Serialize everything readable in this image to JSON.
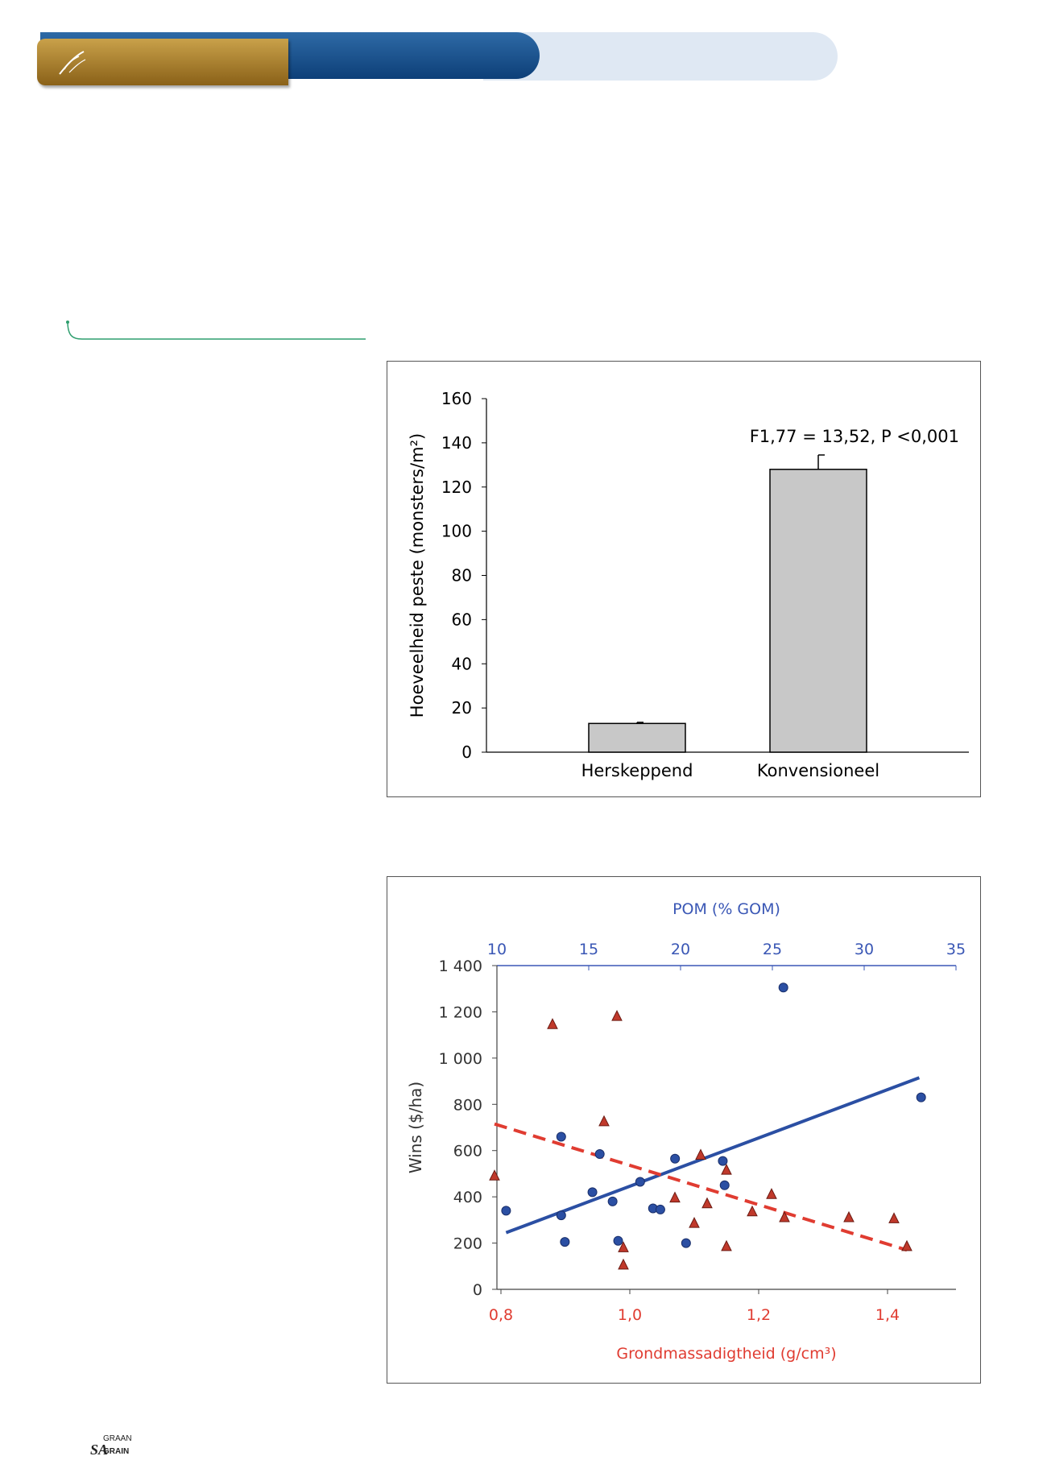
{
  "header": {
    "brand_colors": {
      "gold": "#b08a35",
      "blue": "#1a4f8c",
      "light": "#dfe8f3"
    },
    "logo_icon": "grain-leaf-icon"
  },
  "pull_quote": {
    "rule_color": "#2e9e6e"
  },
  "figures": [
    {
      "chart_data": {
        "type": "bar",
        "categories": [
          "Herskeppend",
          "Konvensioneel"
        ],
        "values": [
          13,
          128
        ],
        "errors": [
          0.5,
          6.5
        ],
        "ylabel": "Hoeveelheid peste (monsters/m²)",
        "ylim": [
          0,
          160
        ],
        "yticks": [
          "0",
          "20",
          "40",
          "60",
          "80",
          "100",
          "120",
          "140",
          "160"
        ],
        "annotation": "F1,77 = 13,52, P <0,001",
        "bar_color": "#c8c8c8",
        "grid": false
      }
    },
    {
      "chart_data": {
        "type": "scatter",
        "top_axis": {
          "label": "POM (% GOM)",
          "range": [
            10,
            35
          ],
          "ticks": [
            "10",
            "15",
            "20",
            "25",
            "30",
            "35"
          ],
          "color": "#3a57b5"
        },
        "bottom_axis": {
          "label": "Grondmassadigtheid (g/cm³)",
          "range": [
            0.79,
            1.5
          ],
          "ticks": [
            "0,8",
            "1,0",
            "1,2",
            "1,4"
          ],
          "tick_values": [
            0.8,
            1.0,
            1.2,
            1.4
          ],
          "color": "#e03c31"
        },
        "ylabel": "Wins ($/ha)",
        "ylim": [
          0,
          1400
        ],
        "yticks": [
          "0",
          "200",
          "400",
          "600",
          "800",
          "1 000",
          "1 200",
          "1 400"
        ],
        "series": [
          {
            "marker": "circle",
            "color": "#2b4fa3",
            "axis": "top",
            "points": [
              [
                10.5,
                340
              ],
              [
                13.5,
                660
              ],
              [
                13.5,
                320
              ],
              [
                13.7,
                205
              ],
              [
                15.2,
                420
              ],
              [
                15.6,
                585
              ],
              [
                16.3,
                380
              ],
              [
                16.6,
                210
              ],
              [
                17.8,
                465
              ],
              [
                18.5,
                350
              ],
              [
                18.9,
                345
              ],
              [
                19.7,
                565
              ],
              [
                20.3,
                200
              ],
              [
                22.3,
                555
              ],
              [
                22.4,
                450
              ],
              [
                25.6,
                1305
              ],
              [
                33.1,
                830
              ]
            ]
          },
          {
            "marker": "triangle",
            "color": "#c0392b",
            "axis": "bottom",
            "points": [
              [
                0.79,
                490
              ],
              [
                0.88,
                1145
              ],
              [
                0.96,
                725
              ],
              [
                0.98,
                1180
              ],
              [
                0.99,
                180
              ],
              [
                0.99,
                105
              ],
              [
                1.07,
                395
              ],
              [
                1.1,
                285
              ],
              [
                1.11,
                580
              ],
              [
                1.12,
                370
              ],
              [
                1.15,
                185
              ],
              [
                1.15,
                515
              ],
              [
                1.19,
                335
              ],
              [
                1.22,
                410
              ],
              [
                1.24,
                310
              ],
              [
                1.34,
                310
              ],
              [
                1.41,
                305
              ],
              [
                1.43,
                185
              ]
            ]
          }
        ],
        "trendlines": [
          {
            "axis": "top",
            "color": "#2b4fa3",
            "style": "solid",
            "from": [
              10.5,
              245
            ],
            "to": [
              33.0,
              915
            ]
          },
          {
            "axis": "bottom",
            "color": "#e03c31",
            "style": "dashed",
            "from": [
              0.79,
              715
            ],
            "to": [
              1.43,
              170
            ]
          }
        ],
        "grid": false
      }
    }
  ],
  "footer": {
    "logo_top": "GRAAN",
    "logo_big": "SA",
    "logo_bottom": "GRAIN"
  }
}
